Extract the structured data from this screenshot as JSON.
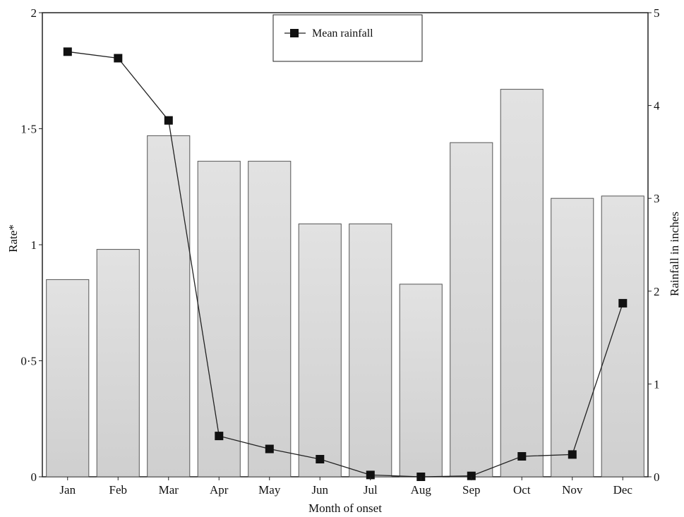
{
  "chart_data": {
    "type": "bar",
    "categories": [
      "Jan",
      "Feb",
      "Mar",
      "Apr",
      "May",
      "Jun",
      "Jul",
      "Aug",
      "Sep",
      "Oct",
      "Nov",
      "Dec"
    ],
    "series": [
      {
        "axis": "left",
        "type": "bar",
        "values": [
          0.85,
          0.98,
          1.47,
          1.36,
          1.36,
          1.09,
          1.09,
          0.83,
          1.44,
          1.67,
          1.2,
          1.21
        ]
      },
      {
        "name": "Mean rainfall",
        "axis": "right",
        "type": "line",
        "values": [
          4.58,
          4.51,
          3.84,
          0.44,
          0.3,
          0.19,
          0.02,
          0.0,
          0.01,
          0.22,
          0.24,
          1.87
        ]
      }
    ],
    "xlabel": "Month of onset",
    "ylabel": "Rate*",
    "y2label": "Rainfall in inches",
    "ylim": [
      0,
      2
    ],
    "y2lim": [
      0,
      5
    ],
    "yticks": [
      "0",
      "0·5",
      "1",
      "1·5",
      "2"
    ],
    "y2ticks": [
      "0",
      "1",
      "2",
      "3",
      "4",
      "5"
    ],
    "legend": "top-center",
    "grid": false,
    "colors": {
      "bar_fill": "#d8d8d8",
      "bar_stroke": "#555555",
      "line": "#222222",
      "marker": "#111111"
    }
  }
}
